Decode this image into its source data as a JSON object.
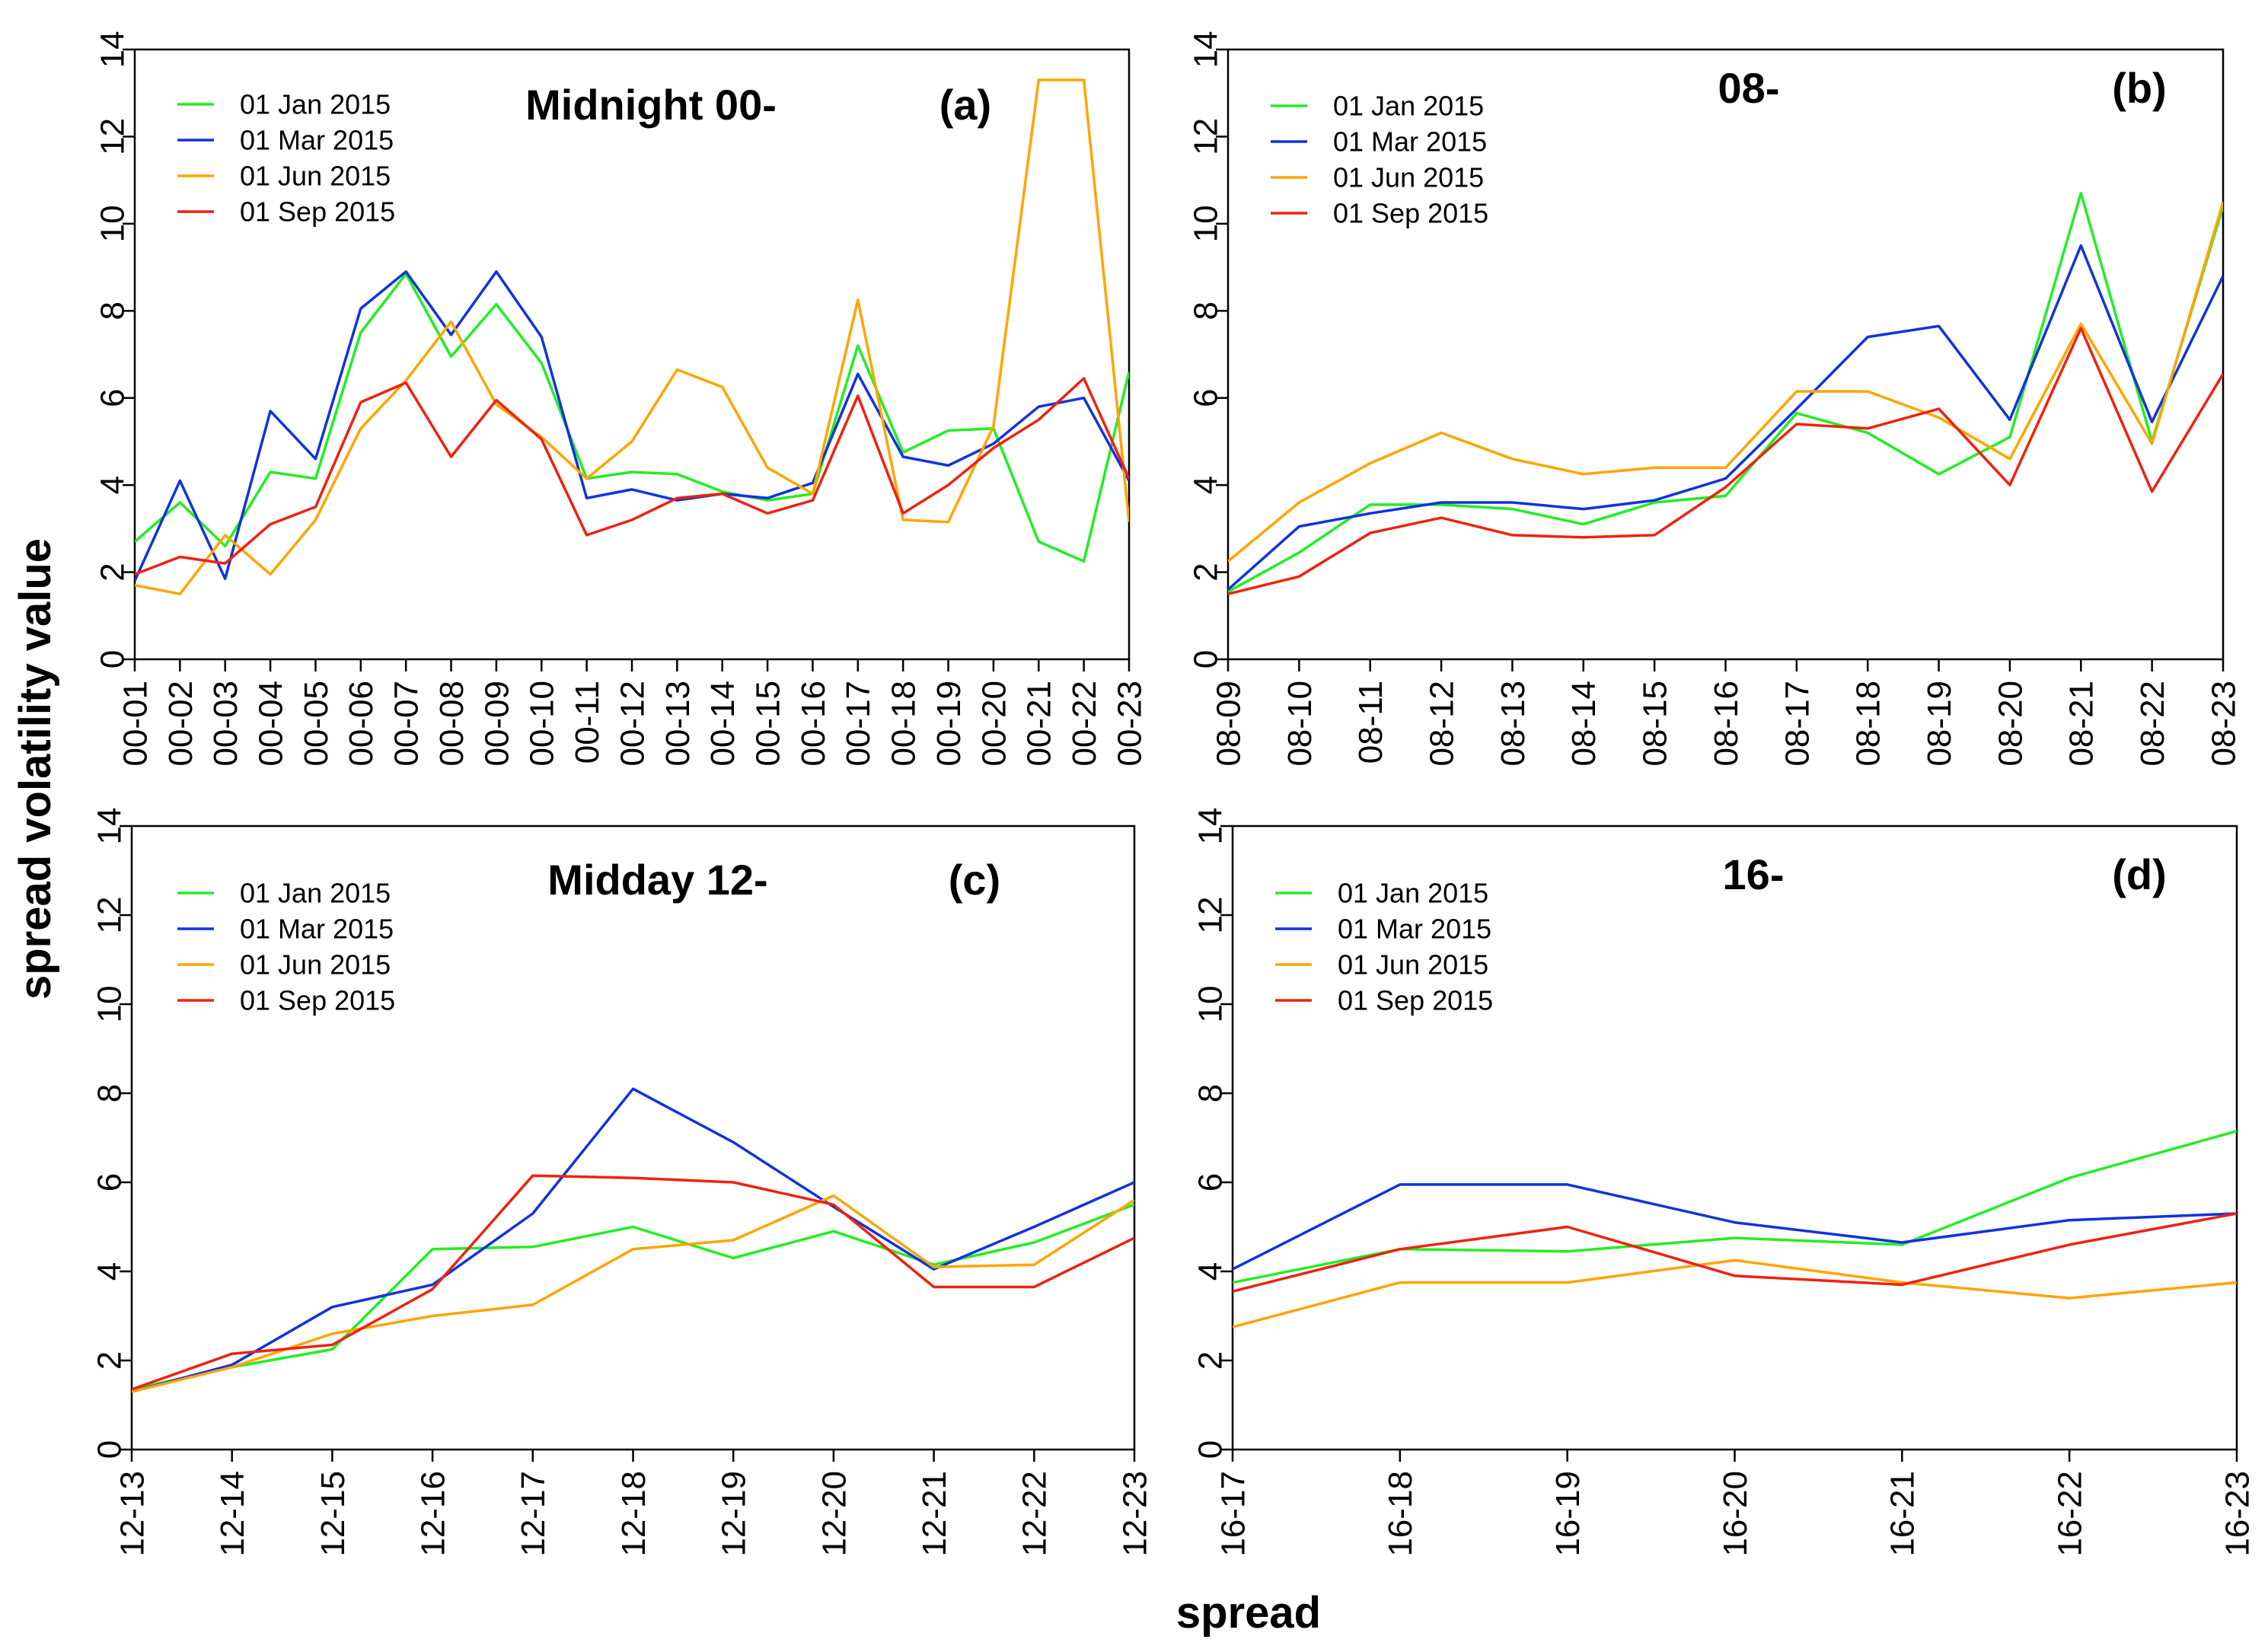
{
  "axis_labels": {
    "y": "spread volatility value",
    "x": "spread"
  },
  "legend_labels": [
    "01 Jan 2015",
    "01 Mar 2015",
    "01 Jun 2015",
    "01 Sep 2015"
  ],
  "colors": {
    "jan": "#22ee22",
    "mar": "#1133dd",
    "jun": "#ffa500",
    "sep": "#ee2211"
  },
  "chart_data": [
    {
      "type": "line",
      "title": "Midnight 00-",
      "tag": "(a)",
      "xlabel": "spread",
      "ylabel": "spread volatility value",
      "ylim": [
        0,
        14
      ],
      "yticks": [
        0,
        2,
        4,
        6,
        8,
        10,
        12,
        14
      ],
      "categories": [
        "00-01",
        "00-02",
        "00-03",
        "00-04",
        "00-05",
        "00-06",
        "00-07",
        "00-08",
        "00-09",
        "00-10",
        "00-11",
        "00-12",
        "00-13",
        "00-14",
        "00-15",
        "00-16",
        "00-17",
        "00-18",
        "00-19",
        "00-20",
        "00-21",
        "00-22",
        "00-23"
      ],
      "series": [
        {
          "name": "01 Jan 2015",
          "color": "#22ee22",
          "values": [
            2.7,
            3.6,
            2.6,
            4.3,
            4.15,
            7.5,
            8.85,
            6.95,
            8.15,
            6.8,
            4.15,
            4.3,
            4.25,
            3.85,
            3.65,
            3.8,
            7.2,
            4.75,
            5.25,
            5.3,
            2.7,
            2.25,
            6.6
          ]
        },
        {
          "name": "01 Mar 2015",
          "color": "#1133dd",
          "values": [
            1.8,
            4.1,
            1.85,
            5.7,
            4.6,
            8.05,
            8.9,
            7.45,
            8.9,
            7.4,
            3.7,
            3.9,
            3.65,
            3.8,
            3.7,
            4.05,
            6.55,
            4.65,
            4.45,
            4.95,
            5.8,
            6.0,
            4.1
          ]
        },
        {
          "name": "01 Jun 2015",
          "color": "#ffa500",
          "values": [
            1.7,
            1.5,
            2.85,
            1.95,
            3.2,
            5.3,
            6.4,
            7.75,
            5.85,
            5.1,
            4.15,
            5.0,
            6.65,
            6.25,
            4.4,
            3.8,
            8.25,
            3.2,
            3.15,
            5.35,
            13.3,
            13.3,
            3.15
          ]
        },
        {
          "name": "01 Sep 2015",
          "color": "#ee2211",
          "values": [
            1.95,
            2.35,
            2.2,
            3.1,
            3.5,
            5.9,
            6.35,
            4.65,
            5.95,
            5.05,
            2.85,
            3.2,
            3.7,
            3.8,
            3.35,
            3.65,
            6.05,
            3.35,
            4.0,
            4.85,
            5.5,
            6.45,
            4.15
          ]
        }
      ]
    },
    {
      "type": "line",
      "title": "08-",
      "tag": "(b)",
      "xlabel": "spread",
      "ylabel": "spread volatility value",
      "ylim": [
        0,
        14
      ],
      "yticks": [
        0,
        2,
        4,
        6,
        8,
        10,
        12,
        14
      ],
      "categories": [
        "08-09",
        "08-10",
        "08-11",
        "08-12",
        "08-13",
        "08-14",
        "08-15",
        "08-16",
        "08-17",
        "08-18",
        "08-19",
        "08-20",
        "08-21",
        "08-22",
        "08-23"
      ],
      "series": [
        {
          "name": "01 Jan 2015",
          "color": "#22ee22",
          "values": [
            1.55,
            2.45,
            3.55,
            3.55,
            3.45,
            3.1,
            3.6,
            3.75,
            5.65,
            5.2,
            4.25,
            5.1,
            10.7,
            5.0,
            10.4
          ]
        },
        {
          "name": "01 Mar 2015",
          "color": "#1133dd",
          "values": [
            1.6,
            3.05,
            3.35,
            3.6,
            3.6,
            3.45,
            3.65,
            4.15,
            5.75,
            7.4,
            7.65,
            5.5,
            9.5,
            5.45,
            8.8
          ]
        },
        {
          "name": "01 Jun 2015",
          "color": "#ffa500",
          "values": [
            2.25,
            3.6,
            4.5,
            5.2,
            4.6,
            4.25,
            4.4,
            4.4,
            6.15,
            6.15,
            5.55,
            4.6,
            7.7,
            4.95,
            10.5
          ]
        },
        {
          "name": "01 Sep 2015",
          "color": "#ee2211",
          "values": [
            1.5,
            1.9,
            2.9,
            3.25,
            2.85,
            2.8,
            2.85,
            3.95,
            5.4,
            5.3,
            5.75,
            4.0,
            7.6,
            3.85,
            6.55
          ]
        }
      ]
    },
    {
      "type": "line",
      "title": "Midday 12-",
      "tag": "(c)",
      "xlabel": "spread",
      "ylabel": "spread volatility value",
      "ylim": [
        0,
        14
      ],
      "yticks": [
        0,
        2,
        4,
        6,
        8,
        10,
        12,
        14
      ],
      "categories": [
        "12-13",
        "12-14",
        "12-15",
        "12-16",
        "12-17",
        "12-18",
        "12-19",
        "12-20",
        "12-21",
        "12-22",
        "12-23"
      ],
      "series": [
        {
          "name": "01 Jan 2015",
          "color": "#22ee22",
          "values": [
            1.35,
            1.85,
            2.25,
            4.5,
            4.55,
            5.0,
            4.3,
            4.9,
            4.15,
            4.65,
            5.5
          ]
        },
        {
          "name": "01 Mar 2015",
          "color": "#1133dd",
          "values": [
            1.3,
            1.9,
            3.2,
            3.7,
            5.3,
            8.1,
            6.9,
            5.45,
            4.05,
            5.0,
            6.0
          ]
        },
        {
          "name": "01 Jun 2015",
          "color": "#ffa500",
          "values": [
            1.3,
            1.85,
            2.6,
            3.0,
            3.25,
            4.5,
            4.7,
            5.7,
            4.1,
            4.15,
            5.6
          ]
        },
        {
          "name": "01 Sep 2015",
          "color": "#ee2211",
          "values": [
            1.35,
            2.15,
            2.35,
            3.6,
            6.15,
            6.1,
            6.0,
            5.5,
            3.65,
            3.65,
            4.75
          ]
        }
      ]
    },
    {
      "type": "line",
      "title": "16-",
      "tag": "(d)",
      "xlabel": "spread",
      "ylabel": "spread volatility value",
      "ylim": [
        0,
        14
      ],
      "yticks": [
        0,
        2,
        4,
        6,
        8,
        10,
        12,
        14
      ],
      "categories": [
        "16-17",
        "16-18",
        "16-19",
        "16-20",
        "16-21",
        "16-22",
        "16-23"
      ],
      "series": [
        {
          "name": "01 Jan 2015",
          "color": "#22ee22",
          "values": [
            3.75,
            4.5,
            4.45,
            4.75,
            4.6,
            6.1,
            7.15
          ]
        },
        {
          "name": "01 Mar 2015",
          "color": "#1133dd",
          "values": [
            4.05,
            5.95,
            5.95,
            5.1,
            4.65,
            5.15,
            5.3
          ]
        },
        {
          "name": "01 Jun 2015",
          "color": "#ffa500",
          "values": [
            2.75,
            3.75,
            3.75,
            4.25,
            3.75,
            3.4,
            3.75
          ]
        },
        {
          "name": "01 Sep 2015",
          "color": "#ee2211",
          "values": [
            3.55,
            4.5,
            5.0,
            3.9,
            3.7,
            4.6,
            5.3
          ]
        }
      ]
    }
  ]
}
